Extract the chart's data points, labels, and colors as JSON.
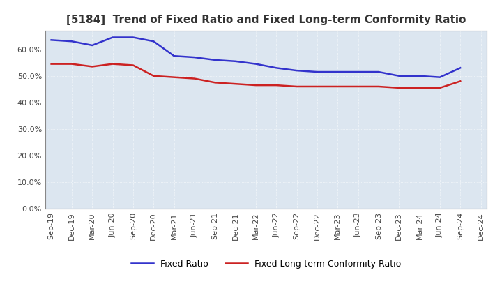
{
  "title": "[5184]  Trend of Fixed Ratio and Fixed Long-term Conformity Ratio",
  "x_labels": [
    "Sep-19",
    "Dec-19",
    "Mar-20",
    "Jun-20",
    "Sep-20",
    "Dec-20",
    "Mar-21",
    "Jun-21",
    "Sep-21",
    "Dec-21",
    "Mar-22",
    "Jun-22",
    "Sep-22",
    "Dec-22",
    "Mar-23",
    "Jun-23",
    "Sep-23",
    "Dec-23",
    "Mar-24",
    "Jun-24",
    "Sep-24",
    "Dec-24"
  ],
  "fixed_ratio": [
    63.5,
    63.0,
    61.5,
    64.5,
    64.5,
    63.0,
    57.5,
    57.0,
    56.0,
    55.5,
    54.5,
    53.0,
    52.0,
    51.5,
    51.5,
    51.5,
    51.5,
    50.0,
    50.0,
    49.5,
    53.0,
    null
  ],
  "fixed_lt_ratio": [
    54.5,
    54.5,
    53.5,
    54.5,
    54.0,
    50.0,
    49.5,
    49.0,
    47.5,
    47.0,
    46.5,
    46.5,
    46.0,
    46.0,
    46.0,
    46.0,
    46.0,
    45.5,
    45.5,
    45.5,
    48.0,
    null
  ],
  "ylim": [
    0,
    67
  ],
  "yticks": [
    0,
    10,
    20,
    30,
    40,
    50,
    60
  ],
  "line_color_fixed": "#3333cc",
  "line_color_lt": "#cc2222",
  "plot_bg_color": "#dce6f0",
  "fig_bg_color": "#ffffff",
  "grid_color": "#ffffff",
  "legend_fixed": "Fixed Ratio",
  "legend_lt": "Fixed Long-term Conformity Ratio",
  "title_fontsize": 11,
  "axis_fontsize": 8,
  "legend_fontsize": 9,
  "line_width": 1.8
}
